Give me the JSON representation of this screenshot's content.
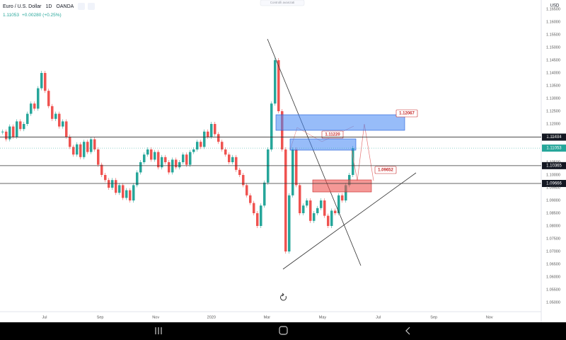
{
  "header": {
    "symbol": "Euro / U.S. Dollar",
    "interval": "1D",
    "source": "OANDA",
    "price": "1.11053",
    "change": "+0.00280 (+0.25%)",
    "center_note": "Controlli avanzati",
    "currency": "USD"
  },
  "price_axis": {
    "labels": [
      "1.16500",
      "1.16000",
      "1.15500",
      "1.15000",
      "1.14500",
      "1.14000",
      "1.13500",
      "1.13000",
      "1.12500",
      "1.12000",
      "1.11500",
      "1.10500",
      "1.10000",
      "1.09500",
      "1.09000",
      "1.08500",
      "1.08000",
      "1.07500",
      "1.07000",
      "1.06500",
      "1.06000",
      "1.05500",
      "1.05000"
    ]
  },
  "levels": [
    {
      "label": "1.11484",
      "style": "dark"
    },
    {
      "label": "1.11053",
      "style": "current"
    },
    {
      "label": "1.10365",
      "style": "dark"
    },
    {
      "label": "1.09666",
      "style": "dark"
    }
  ],
  "time_axis": {
    "labels": [
      "Jul",
      "Sep",
      "Nov",
      "2020",
      "Mar",
      "May",
      "Jul",
      "Sep",
      "Nov"
    ]
  },
  "zones": [
    {
      "label": "1.12067",
      "color": "blue"
    },
    {
      "label": "1.11220",
      "color": "blue"
    },
    {
      "label": "1.09652",
      "color": "red"
    }
  ],
  "chart": {
    "closes": [
      1.117,
      1.114,
      1.119,
      1.115,
      1.121,
      1.118,
      1.12,
      1.124,
      1.128,
      1.126,
      1.134,
      1.14,
      1.133,
      1.127,
      1.122,
      1.124,
      1.119,
      1.121,
      1.115,
      1.111,
      1.108,
      1.112,
      1.107,
      1.113,
      1.109,
      1.114,
      1.11,
      1.104,
      1.1,
      1.098,
      1.095,
      1.098,
      1.093,
      1.096,
      1.091,
      1.094,
      1.09,
      1.096,
      1.101,
      1.105,
      1.108,
      1.11,
      1.106,
      1.109,
      1.103,
      1.107,
      1.105,
      1.101,
      1.106,
      1.103,
      1.105,
      1.108,
      1.104,
      1.109,
      1.11,
      1.113,
      1.111,
      1.117,
      1.115,
      1.12,
      1.116,
      1.113,
      1.11,
      1.108,
      1.105,
      1.107,
      1.102,
      1.1,
      1.096,
      1.092,
      1.089,
      1.085,
      1.08,
      1.088,
      1.097,
      1.11,
      1.128,
      1.145,
      1.125,
      1.11,
      1.07,
      1.092,
      1.11,
      1.096,
      1.085,
      1.088,
      1.09,
      1.082,
      1.085,
      1.087,
      1.09,
      1.084,
      1.08,
      1.086,
      1.085,
      1.092,
      1.09,
      1.096,
      1.1,
      1.11053
    ]
  }
}
